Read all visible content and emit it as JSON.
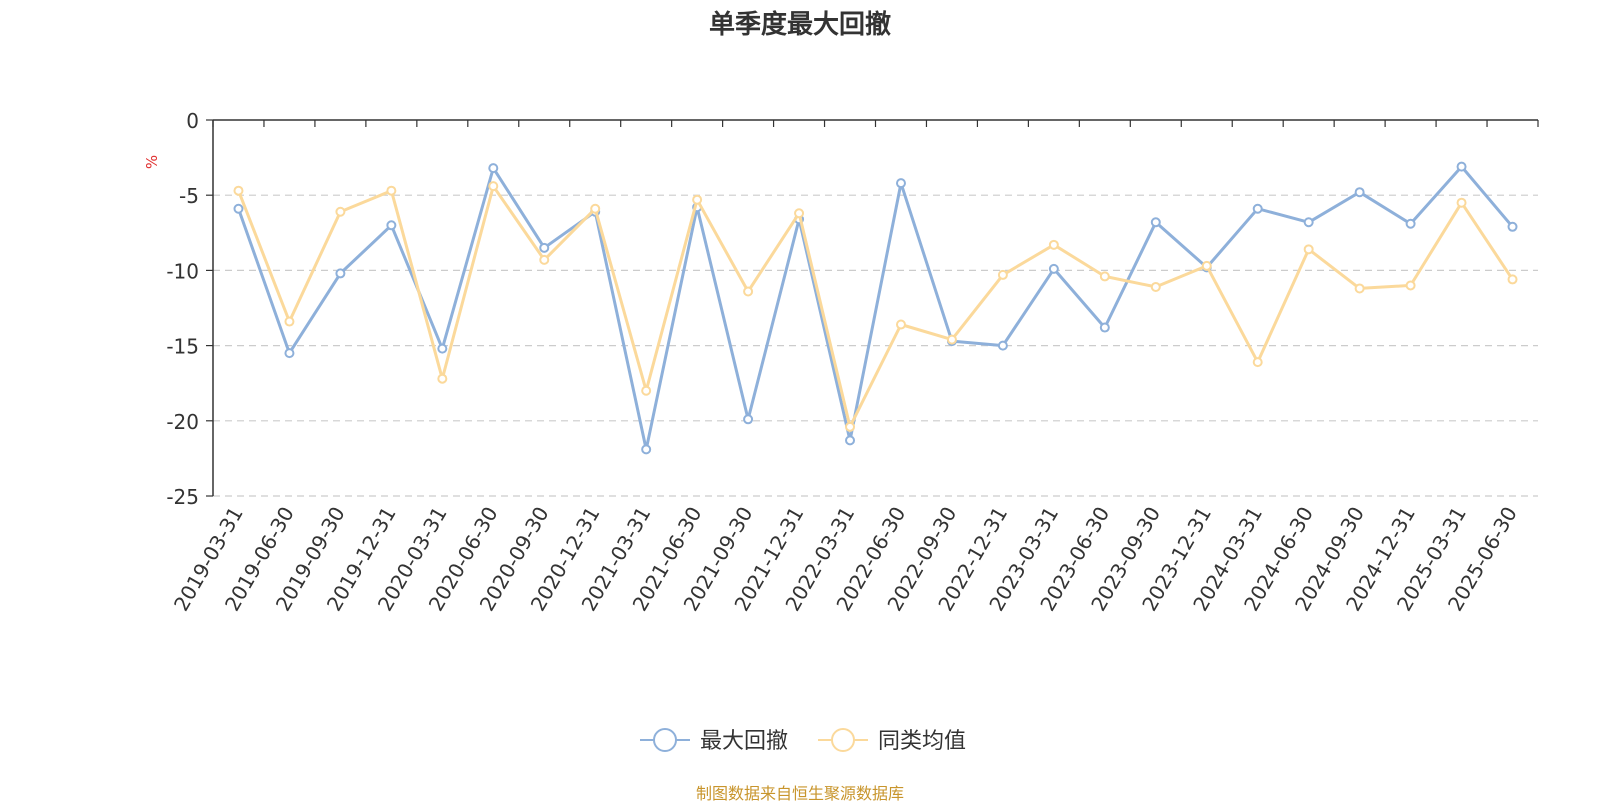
{
  "chart_data": {
    "type": "line",
    "title": "单季度最大回撤",
    "ylabel": "%",
    "xlabel": "",
    "ylim": [
      -25,
      0
    ],
    "yticks": [
      0,
      -5,
      -10,
      -15,
      -20,
      -25
    ],
    "grid": true,
    "legend_position": "bottom",
    "categories": [
      "2019-03-31",
      "2019-06-30",
      "2019-09-30",
      "2019-12-31",
      "2020-03-31",
      "2020-06-30",
      "2020-09-30",
      "2020-12-31",
      "2021-03-31",
      "2021-06-30",
      "2021-09-30",
      "2021-12-31",
      "2022-03-31",
      "2022-06-30",
      "2022-09-30",
      "2022-12-31",
      "2023-03-31",
      "2023-06-30",
      "2023-09-30",
      "2023-12-31",
      "2024-03-31",
      "2024-06-30",
      "2024-09-30",
      "2024-12-31",
      "2025-03-31",
      "2025-06-30"
    ],
    "series": [
      {
        "name": "最大回撤",
        "color": "#8eb0da",
        "values": [
          -5.9,
          -15.5,
          -10.2,
          -7.0,
          -15.2,
          -3.2,
          -8.5,
          -6.1,
          -21.9,
          -5.8,
          -19.9,
          -6.6,
          -21.3,
          -4.2,
          -14.7,
          -15.0,
          -9.9,
          -13.8,
          -6.8,
          -9.8,
          -5.9,
          -6.8,
          -4.8,
          -6.9,
          -3.1,
          -7.1
        ]
      },
      {
        "name": "同类均值",
        "color": "#fbd99b",
        "values": [
          -4.7,
          -13.4,
          -6.1,
          -4.7,
          -17.2,
          -4.4,
          -9.3,
          -5.9,
          -18.0,
          -5.3,
          -11.4,
          -6.2,
          -20.4,
          -13.6,
          -14.6,
          -10.3,
          -8.3,
          -10.4,
          -11.1,
          -9.7,
          -16.1,
          -8.6,
          -11.2,
          -11.0,
          -5.5,
          -10.6
        ]
      }
    ]
  },
  "source_note": "制图数据来自恒生聚源数据库"
}
